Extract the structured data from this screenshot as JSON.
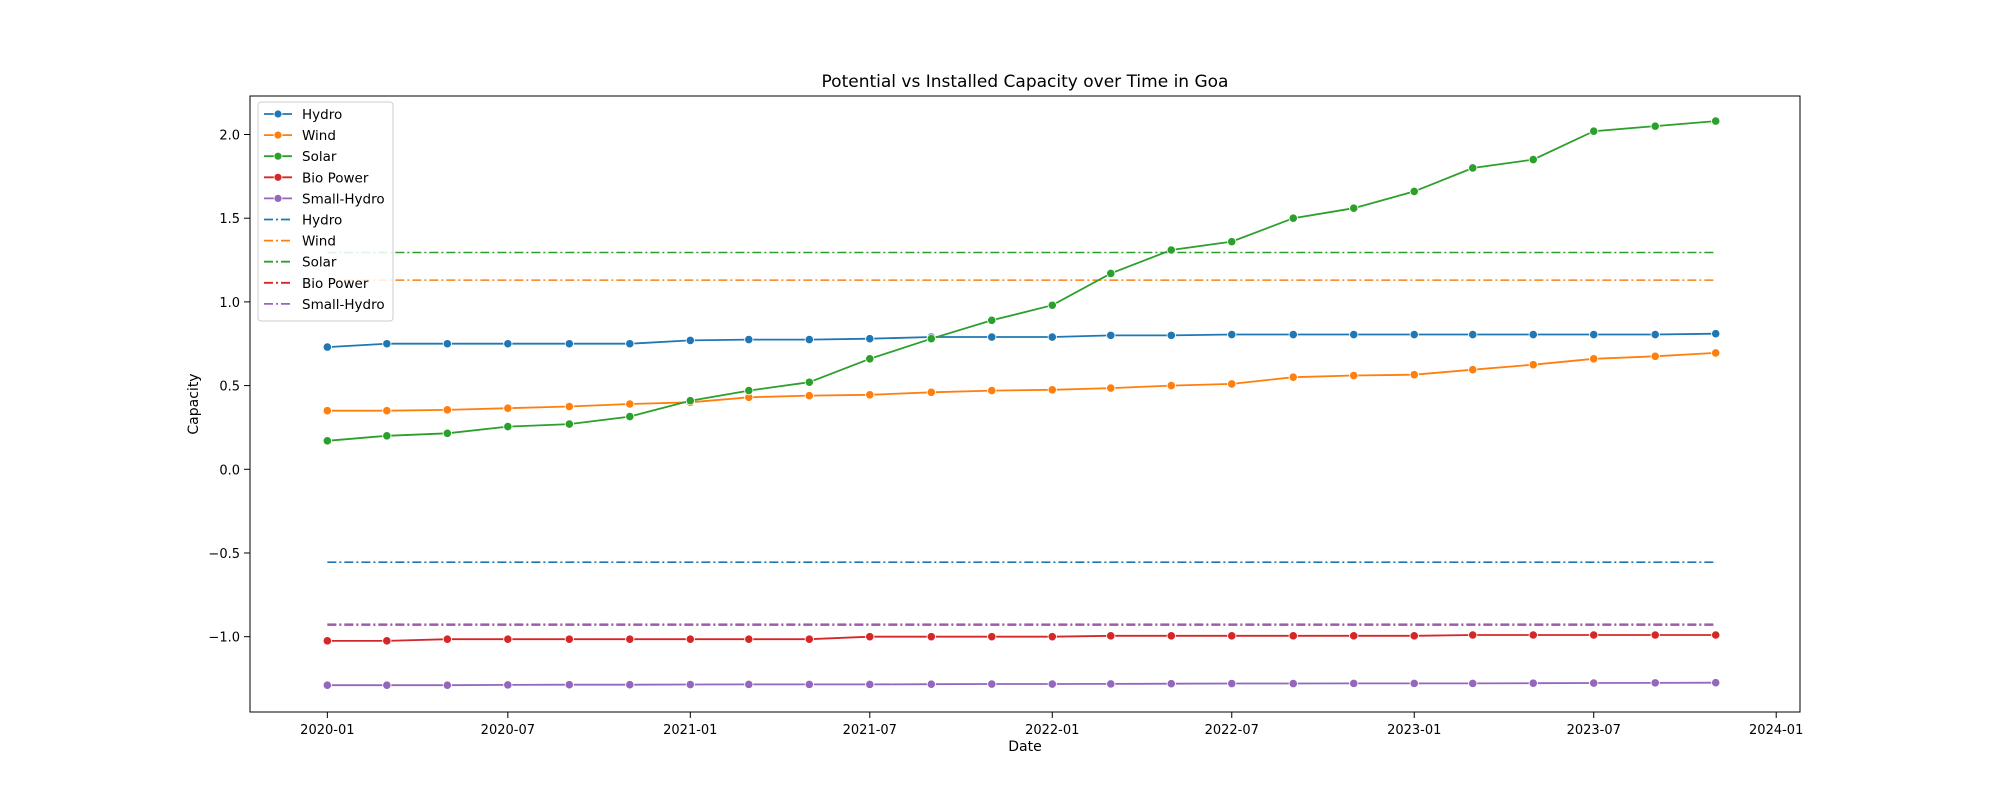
{
  "chart_data": {
    "type": "line",
    "title": "Potential vs Installed Capacity over Time in Goa",
    "xlabel": "Date",
    "ylabel": "Capacity",
    "x": [
      "2020-01-01",
      "2020-03-01",
      "2020-05-01",
      "2020-07-01",
      "2020-09-01",
      "2020-11-01",
      "2021-01-01",
      "2021-03-01",
      "2021-05-01",
      "2021-07-01",
      "2021-09-01",
      "2021-11-01",
      "2022-01-01",
      "2022-03-01",
      "2022-05-01",
      "2022-07-01",
      "2022-09-01",
      "2022-11-01",
      "2023-01-01",
      "2023-03-01",
      "2023-05-01",
      "2023-07-01",
      "2023-09-01",
      "2023-11-01"
    ],
    "xlim": [
      "2019-10-15",
      "2024-01-25"
    ],
    "ylim": [
      -1.45,
      2.23
    ],
    "x_ticks": [
      "2020-01",
      "2020-07",
      "2021-01",
      "2021-07",
      "2022-01",
      "2022-07",
      "2023-01",
      "2023-07",
      "2024-01"
    ],
    "y_ticks": [
      "2.0",
      "1.5",
      "1.0",
      "0.5",
      "0.0",
      "−0.5",
      "−1.0"
    ],
    "grid": false,
    "legend_position": "upper-left",
    "series": [
      {
        "name": "Hydro",
        "style": "solid-marker",
        "color": "#1f77b4",
        "values": [
          0.73,
          0.75,
          0.75,
          0.75,
          0.75,
          0.75,
          0.77,
          0.775,
          0.775,
          0.78,
          0.79,
          0.79,
          0.79,
          0.8,
          0.8,
          0.805,
          0.805,
          0.805,
          0.805,
          0.805,
          0.805,
          0.805,
          0.805,
          0.81
        ]
      },
      {
        "name": "Wind",
        "style": "solid-marker",
        "color": "#ff7f0e",
        "values": [
          0.35,
          0.35,
          0.355,
          0.365,
          0.375,
          0.39,
          0.4,
          0.43,
          0.44,
          0.445,
          0.46,
          0.47,
          0.475,
          0.485,
          0.5,
          0.51,
          0.55,
          0.56,
          0.565,
          0.595,
          0.625,
          0.66,
          0.675,
          0.695
        ]
      },
      {
        "name": "Solar",
        "style": "solid-marker",
        "color": "#2ca02c",
        "values": [
          0.17,
          0.2,
          0.215,
          0.255,
          0.27,
          0.315,
          0.41,
          0.47,
          0.52,
          0.66,
          0.78,
          0.89,
          0.98,
          1.17,
          1.31,
          1.36,
          1.5,
          1.56,
          1.66,
          1.8,
          1.85,
          2.02,
          2.05,
          2.08
        ]
      },
      {
        "name": "Bio Power",
        "style": "solid-marker",
        "color": "#d62728",
        "values": [
          -1.025,
          -1.025,
          -1.015,
          -1.015,
          -1.015,
          -1.015,
          -1.015,
          -1.015,
          -1.015,
          -1.0,
          -1.0,
          -1.0,
          -1.0,
          -0.995,
          -0.995,
          -0.995,
          -0.995,
          -0.995,
          -0.995,
          -0.99,
          -0.99,
          -0.99,
          -0.99,
          -0.99
        ]
      },
      {
        "name": "Small-Hydro",
        "style": "solid-marker",
        "color": "#9467bd",
        "values": [
          -1.29,
          -1.29,
          -1.29,
          -1.288,
          -1.287,
          -1.287,
          -1.286,
          -1.285,
          -1.285,
          -1.285,
          -1.284,
          -1.283,
          -1.283,
          -1.282,
          -1.281,
          -1.28,
          -1.28,
          -1.279,
          -1.279,
          -1.279,
          -1.278,
          -1.277,
          -1.276,
          -1.275
        ]
      },
      {
        "name": "Hydro",
        "style": "dashdot",
        "color": "#1f77b4",
        "constant": -0.555
      },
      {
        "name": "Wind",
        "style": "dashdot",
        "color": "#ff7f0e",
        "constant": 1.13
      },
      {
        "name": "Solar",
        "style": "dashdot",
        "color": "#2ca02c",
        "constant": 1.295
      },
      {
        "name": "Bio Power",
        "style": "dashdot",
        "color": "#d62728",
        "constant": -0.93
      },
      {
        "name": "Small-Hydro",
        "style": "dashdot",
        "color": "#9467bd",
        "constant": -0.925
      }
    ]
  }
}
